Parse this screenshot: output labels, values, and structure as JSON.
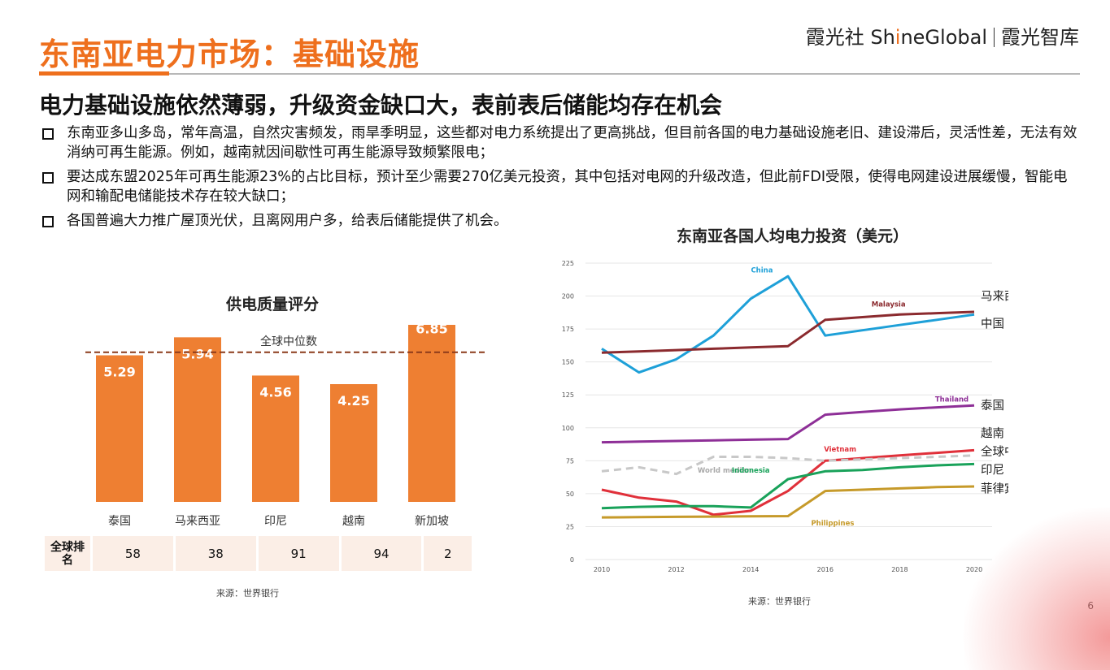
{
  "header": {
    "title": "东南亚电力市场：基础设施",
    "brand_pre": "霞光社 Sh",
    "brand_hi": "i",
    "brand_post": "neGlobal",
    "brand_right": "霞光智库"
  },
  "subtitle": "电力基础设施依然薄弱，升级资金缺口大，表前表后储能均存在机会",
  "bullets": [
    "东南亚多山多岛，常年高温，自然灾害频发，雨旱季明显，这些都对电力系统提出了更高挑战，但目前各国的电力基础设施老旧、建设滞后，灵活性差，无法有效消纳可再生能源。例如，越南就因间歇性可再生能源导致频繁限电；",
    "要达成东盟2025年可再生能源23%的占比目标，预计至少需要270亿美元投资，其中包括对电网的升级改造，但此前FDI受限，使得电网建设进展缓慢，智能电网和输配电储能技术存在较大缺口；",
    "各国普遍大力推广屋顶光伏，且离网用户多，给表后储能提供了机会。"
  ],
  "chart_data": [
    {
      "type": "bar",
      "title": "供电质量评分",
      "categories": [
        "泰国",
        "马来西亚",
        "印尼",
        "越南",
        "新加坡"
      ],
      "values": [
        5.29,
        5.94,
        4.56,
        4.25,
        6.85
      ],
      "reference_line": {
        "label": "全球中位数",
        "value": 5.4
      },
      "ylim": [
        0,
        8.5
      ],
      "bar_color": "#ee7f32",
      "rank_table": {
        "header": "全球排名",
        "values": [
          "58",
          "38",
          "91",
          "94",
          "2"
        ]
      },
      "source": "来源：世界银行"
    },
    {
      "type": "line",
      "title": "东南亚各国人均电力投资（美元）",
      "x": [
        2010,
        2011,
        2012,
        2013,
        2014,
        2015,
        2016,
        2017,
        2018,
        2019,
        2020
      ],
      "xticks": [
        "2010",
        "2012",
        "2014",
        "2016",
        "2018",
        "2020"
      ],
      "yticks": [
        "0",
        "25",
        "50",
        "75",
        "100",
        "125",
        "150",
        "175",
        "200",
        "225"
      ],
      "ylim": [
        0,
        225
      ],
      "series": [
        {
          "name": "China",
          "color": "#1ea0d8",
          "values": [
            160,
            142,
            152,
            170,
            198,
            215,
            170,
            174,
            178,
            182,
            186
          ]
        },
        {
          "name": "Malaysia",
          "color": "#8b2a2e",
          "values": [
            157,
            158,
            159,
            160,
            161,
            162,
            182,
            184,
            186,
            187,
            188
          ]
        },
        {
          "name": "Thailand",
          "color": "#8e2f97",
          "values": [
            89,
            89.5,
            90,
            90.5,
            91,
            91.5,
            110,
            112,
            114,
            115.5,
            117
          ]
        },
        {
          "name": "Vietnam",
          "color": "#e0303a",
          "values": [
            53,
            47,
            44,
            34,
            37,
            52,
            75,
            77,
            79,
            81,
            83
          ]
        },
        {
          "name": "World median",
          "color": "#c8c8c8",
          "dashed": true,
          "values": [
            67,
            70,
            65,
            78,
            78,
            77,
            75,
            76,
            77,
            78,
            79
          ]
        },
        {
          "name": "Indonesia",
          "color": "#19a25a",
          "values": [
            39,
            40,
            40.5,
            40.5,
            39.5,
            61,
            67,
            68,
            70,
            71.5,
            72.5
          ]
        },
        {
          "name": "Philippines",
          "color": "#c69a2a",
          "values": [
            32,
            32.2,
            32.4,
            32.6,
            32.8,
            33,
            52,
            53,
            54,
            55,
            55.5
          ]
        }
      ],
      "inline_labels": [
        "China",
        "Malaysia",
        "Thailand",
        "Vietnam",
        "World median",
        "Indonesia",
        "Philippines"
      ],
      "right_labels": [
        "马来西亚",
        "中国",
        "泰国",
        "越南",
        "全球中位数",
        "印尼",
        "菲律宾"
      ],
      "source": "来源：世界银行"
    }
  ],
  "page_number": "6"
}
